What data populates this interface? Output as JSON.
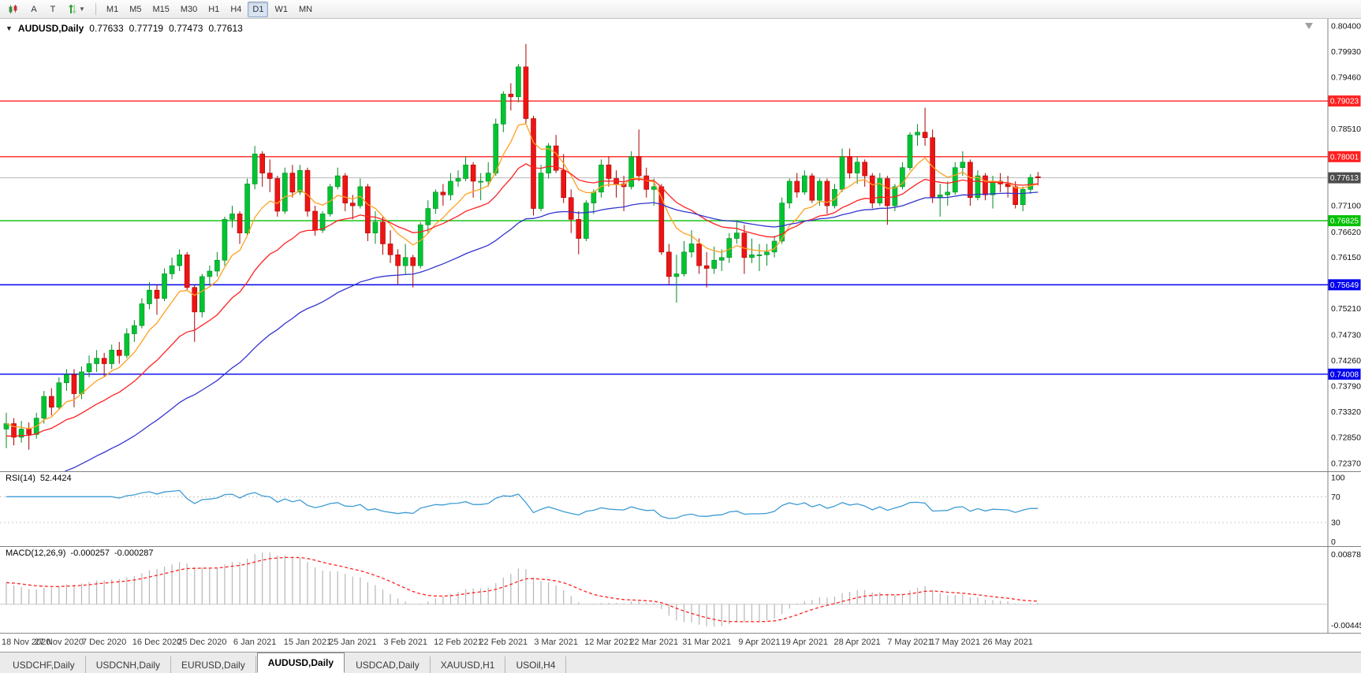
{
  "toolbar": {
    "icon_a": "A",
    "icon_t": "T",
    "timeframes": [
      "M1",
      "M5",
      "M15",
      "M30",
      "H1",
      "H4",
      "D1",
      "W1",
      "MN"
    ],
    "active_timeframe": "D1"
  },
  "header": {
    "symbol": "AUDUSD,Daily",
    "open": "0.77633",
    "high": "0.77719",
    "low": "0.77473",
    "close": "0.77613"
  },
  "price_axis": {
    "labels": [
      "0.80400",
      "0.79930",
      "0.79460",
      "0.78980",
      "0.78510",
      "0.78040",
      "0.77570",
      "0.77100",
      "0.76620",
      "0.76150",
      "0.75680",
      "0.75210",
      "0.74730",
      "0.74260",
      "0.73790",
      "0.73320",
      "0.72850",
      "0.72370"
    ]
  },
  "hlines": [
    {
      "price": 0.79023,
      "label": "0.79023",
      "color": "#ff2020"
    },
    {
      "price": 0.78001,
      "label": "0.78001",
      "color": "#ff2020"
    },
    {
      "price": 0.76825,
      "label": "0.76825",
      "color": "#00c000"
    },
    {
      "price": 0.75649,
      "label": "0.75649",
      "color": "#0000ee"
    },
    {
      "price": 0.74008,
      "label": "0.74008",
      "color": "#0000ee"
    }
  ],
  "current_price": {
    "price": 0.77613,
    "label": "0.77613",
    "line_color": "#b8b8b8",
    "badge_color": "#4d4d4d"
  },
  "colors": {
    "up_fill": "#00c432",
    "up_stroke": "#008a22",
    "down_fill": "#ee1414",
    "down_stroke": "#aa0000",
    "ma_fast": "#ffa020",
    "ma_mid": "#ff2020",
    "ma_slow": "#3434d0",
    "rsi_line": "#3d9bd5",
    "rsi_level": "#c8c8c8",
    "macd_hist": "#b6b6b6",
    "macd_signal": "#ff2020",
    "axis_line": "#808080"
  },
  "rsi": {
    "label": "RSI(14)",
    "value": "52.4424",
    "levels": [
      "100",
      "70",
      "30",
      "0"
    ]
  },
  "macd": {
    "label": "MACD(12,26,9)",
    "value_main": "-0.000257",
    "value_signal": "-0.000287",
    "axis_top": "0.008782",
    "axis_bottom": "-0.004451"
  },
  "dates": [
    {
      "label": "18 Nov 2020",
      "index": 0
    },
    {
      "label": "27 Nov 2020",
      "index": 7
    },
    {
      "label": "7 Dec 2020",
      "index": 13
    },
    {
      "label": "16 Dec 2020",
      "index": 20
    },
    {
      "label": "25 Dec 2020",
      "index": 26
    },
    {
      "label": "6 Jan 2021",
      "index": 33
    },
    {
      "label": "15 Jan 2021",
      "index": 40
    },
    {
      "label": "25 Jan 2021",
      "index": 46
    },
    {
      "label": "3 Feb 2021",
      "index": 53
    },
    {
      "label": "12 Feb 2021",
      "index": 60
    },
    {
      "label": "22 Feb 2021",
      "index": 66
    },
    {
      "label": "3 Mar 2021",
      "index": 73
    },
    {
      "label": "12 Mar 2021",
      "index": 80
    },
    {
      "label": "22 Mar 2021",
      "index": 86
    },
    {
      "label": "31 Mar 2021",
      "index": 93
    },
    {
      "label": "9 Apr 2021",
      "index": 100
    },
    {
      "label": "19 Apr 2021",
      "index": 106
    },
    {
      "label": "28 Apr 2021",
      "index": 113
    },
    {
      "label": "7 May 2021",
      "index": 120
    },
    {
      "label": "17 May 2021",
      "index": 126
    },
    {
      "label": "26 May 2021",
      "index": 133
    }
  ],
  "tabs": [
    {
      "label": "USDCHF,Daily",
      "active": false
    },
    {
      "label": "USDCNH,Daily",
      "active": false
    },
    {
      "label": "EURUSD,Daily",
      "active": false
    },
    {
      "label": "AUDUSD,Daily",
      "active": true
    },
    {
      "label": "USDCAD,Daily",
      "active": false
    },
    {
      "label": "XAUUSD,H1",
      "active": false
    },
    {
      "label": "USOil,H4",
      "active": false
    }
  ],
  "chart_data": {
    "type": "candlestick",
    "symbol": "AUDUSD",
    "timeframe": "Daily",
    "ylim": [
      0.7237,
      0.804
    ],
    "candles": [
      [
        0.73,
        0.733,
        0.7265,
        0.731
      ],
      [
        0.731,
        0.732,
        0.727,
        0.7285
      ],
      [
        0.7285,
        0.7315,
        0.7275,
        0.73
      ],
      [
        0.73,
        0.7312,
        0.7262,
        0.729
      ],
      [
        0.729,
        0.733,
        0.7282,
        0.732
      ],
      [
        0.732,
        0.737,
        0.731,
        0.736
      ],
      [
        0.736,
        0.7375,
        0.7325,
        0.734
      ],
      [
        0.734,
        0.7395,
        0.7335,
        0.7385
      ],
      [
        0.7385,
        0.741,
        0.737,
        0.74
      ],
      [
        0.74,
        0.741,
        0.734,
        0.7365
      ],
      [
        0.7365,
        0.7415,
        0.7355,
        0.7405
      ],
      [
        0.7405,
        0.7435,
        0.7395,
        0.742
      ],
      [
        0.742,
        0.7445,
        0.7405,
        0.743
      ],
      [
        0.743,
        0.744,
        0.7395,
        0.742
      ],
      [
        0.742,
        0.7455,
        0.741,
        0.7445
      ],
      [
        0.7445,
        0.746,
        0.742,
        0.7435
      ],
      [
        0.7435,
        0.7485,
        0.743,
        0.7475
      ],
      [
        0.7475,
        0.75,
        0.746,
        0.749
      ],
      [
        0.749,
        0.754,
        0.7485,
        0.753
      ],
      [
        0.753,
        0.757,
        0.752,
        0.7555
      ],
      [
        0.7555,
        0.7565,
        0.751,
        0.754
      ],
      [
        0.754,
        0.7595,
        0.7535,
        0.7585
      ],
      [
        0.7585,
        0.7615,
        0.7575,
        0.76
      ],
      [
        0.76,
        0.763,
        0.759,
        0.762
      ],
      [
        0.762,
        0.7625,
        0.7555,
        0.756
      ],
      [
        0.756,
        0.7565,
        0.746,
        0.7515
      ],
      [
        0.7515,
        0.7585,
        0.7505,
        0.758
      ],
      [
        0.758,
        0.76,
        0.7565,
        0.759
      ],
      [
        0.759,
        0.7625,
        0.758,
        0.761
      ],
      [
        0.761,
        0.769,
        0.76,
        0.7685
      ],
      [
        0.7685,
        0.771,
        0.767,
        0.7695
      ],
      [
        0.7695,
        0.77,
        0.764,
        0.766
      ],
      [
        0.766,
        0.776,
        0.7655,
        0.775
      ],
      [
        0.775,
        0.782,
        0.774,
        0.7805
      ],
      [
        0.7805,
        0.781,
        0.7745,
        0.777
      ],
      [
        0.777,
        0.7795,
        0.7735,
        0.776
      ],
      [
        0.776,
        0.7765,
        0.769,
        0.77
      ],
      [
        0.77,
        0.778,
        0.7695,
        0.777
      ],
      [
        0.777,
        0.7785,
        0.7725,
        0.7735
      ],
      [
        0.7735,
        0.7785,
        0.773,
        0.7775
      ],
      [
        0.7775,
        0.778,
        0.769,
        0.77
      ],
      [
        0.77,
        0.771,
        0.7655,
        0.7665
      ],
      [
        0.7665,
        0.77,
        0.766,
        0.7695
      ],
      [
        0.7695,
        0.775,
        0.769,
        0.7745
      ],
      [
        0.7745,
        0.778,
        0.774,
        0.7765
      ],
      [
        0.7765,
        0.777,
        0.77,
        0.7715
      ],
      [
        0.7715,
        0.773,
        0.7685,
        0.771
      ],
      [
        0.771,
        0.776,
        0.7705,
        0.7745
      ],
      [
        0.7745,
        0.775,
        0.7645,
        0.766
      ],
      [
        0.766,
        0.77,
        0.764,
        0.768
      ],
      [
        0.768,
        0.769,
        0.762,
        0.764
      ],
      [
        0.764,
        0.7665,
        0.7605,
        0.762
      ],
      [
        0.762,
        0.763,
        0.7565,
        0.76
      ],
      [
        0.76,
        0.764,
        0.7585,
        0.7615
      ],
      [
        0.7615,
        0.762,
        0.756,
        0.76
      ],
      [
        0.76,
        0.768,
        0.7595,
        0.7675
      ],
      [
        0.7675,
        0.772,
        0.766,
        0.7705
      ],
      [
        0.7705,
        0.774,
        0.7695,
        0.7735
      ],
      [
        0.7735,
        0.775,
        0.771,
        0.773
      ],
      [
        0.773,
        0.777,
        0.772,
        0.7755
      ],
      [
        0.7755,
        0.7775,
        0.7745,
        0.776
      ],
      [
        0.776,
        0.78,
        0.7755,
        0.7785
      ],
      [
        0.7785,
        0.779,
        0.7725,
        0.7755
      ],
      [
        0.7755,
        0.777,
        0.772,
        0.7755
      ],
      [
        0.7755,
        0.779,
        0.7745,
        0.777
      ],
      [
        0.777,
        0.787,
        0.7765,
        0.786
      ],
      [
        0.786,
        0.792,
        0.7845,
        0.7915
      ],
      [
        0.7915,
        0.7935,
        0.7885,
        0.791
      ],
      [
        0.791,
        0.797,
        0.79,
        0.7965
      ],
      [
        0.7965,
        0.8007,
        0.786,
        0.787
      ],
      [
        0.787,
        0.7875,
        0.7692,
        0.7705
      ],
      [
        0.7705,
        0.7785,
        0.77,
        0.777
      ],
      [
        0.777,
        0.7825,
        0.776,
        0.782
      ],
      [
        0.782,
        0.784,
        0.777,
        0.7775
      ],
      [
        0.7775,
        0.7805,
        0.7715,
        0.7725
      ],
      [
        0.7725,
        0.774,
        0.766,
        0.7685
      ],
      [
        0.7685,
        0.77,
        0.7621,
        0.765
      ],
      [
        0.765,
        0.772,
        0.7645,
        0.7715
      ],
      [
        0.7715,
        0.774,
        0.7695,
        0.7735
      ],
      [
        0.7735,
        0.7795,
        0.7725,
        0.7785
      ],
      [
        0.7785,
        0.78,
        0.7745,
        0.776
      ],
      [
        0.776,
        0.7775,
        0.7725,
        0.775
      ],
      [
        0.775,
        0.7765,
        0.77,
        0.7745
      ],
      [
        0.7745,
        0.781,
        0.774,
        0.78
      ],
      [
        0.78,
        0.785,
        0.7755,
        0.7765
      ],
      [
        0.7765,
        0.778,
        0.7725,
        0.774
      ],
      [
        0.774,
        0.776,
        0.771,
        0.7745
      ],
      [
        0.7745,
        0.775,
        0.762,
        0.7625
      ],
      [
        0.7625,
        0.764,
        0.7565,
        0.758
      ],
      [
        0.758,
        0.762,
        0.7532,
        0.7585
      ],
      [
        0.7585,
        0.7645,
        0.758,
        0.7625
      ],
      [
        0.7625,
        0.7665,
        0.7615,
        0.764
      ],
      [
        0.764,
        0.765,
        0.7585,
        0.76
      ],
      [
        0.76,
        0.7625,
        0.756,
        0.7595
      ],
      [
        0.7595,
        0.7635,
        0.7585,
        0.761
      ],
      [
        0.761,
        0.763,
        0.759,
        0.7615
      ],
      [
        0.7615,
        0.766,
        0.7605,
        0.765
      ],
      [
        0.765,
        0.768,
        0.764,
        0.766
      ],
      [
        0.766,
        0.7675,
        0.7585,
        0.7615
      ],
      [
        0.7615,
        0.765,
        0.7605,
        0.762
      ],
      [
        0.762,
        0.764,
        0.759,
        0.762
      ],
      [
        0.762,
        0.764,
        0.76,
        0.7625
      ],
      [
        0.7625,
        0.7655,
        0.7615,
        0.7645
      ],
      [
        0.7645,
        0.7725,
        0.764,
        0.7715
      ],
      [
        0.7715,
        0.776,
        0.7705,
        0.7755
      ],
      [
        0.7755,
        0.777,
        0.7725,
        0.7735
      ],
      [
        0.7735,
        0.7775,
        0.773,
        0.7765
      ],
      [
        0.7765,
        0.777,
        0.7715,
        0.772
      ],
      [
        0.772,
        0.776,
        0.771,
        0.7755
      ],
      [
        0.7755,
        0.776,
        0.7695,
        0.771
      ],
      [
        0.771,
        0.775,
        0.7705,
        0.774
      ],
      [
        0.774,
        0.7815,
        0.7735,
        0.78
      ],
      [
        0.78,
        0.7815,
        0.776,
        0.777
      ],
      [
        0.777,
        0.78,
        0.775,
        0.779
      ],
      [
        0.779,
        0.7795,
        0.7745,
        0.7765
      ],
      [
        0.7765,
        0.777,
        0.7705,
        0.7715
      ],
      [
        0.7715,
        0.777,
        0.771,
        0.776
      ],
      [
        0.776,
        0.7765,
        0.7675,
        0.771
      ],
      [
        0.771,
        0.775,
        0.77,
        0.7745
      ],
      [
        0.7745,
        0.779,
        0.774,
        0.778
      ],
      [
        0.778,
        0.7845,
        0.7775,
        0.784
      ],
      [
        0.784,
        0.786,
        0.782,
        0.7845
      ],
      [
        0.7845,
        0.789,
        0.782,
        0.7835
      ],
      [
        0.7835,
        0.785,
        0.7715,
        0.7725
      ],
      [
        0.7725,
        0.775,
        0.769,
        0.773
      ],
      [
        0.773,
        0.7755,
        0.771,
        0.7735
      ],
      [
        0.7735,
        0.779,
        0.773,
        0.778
      ],
      [
        0.778,
        0.781,
        0.7765,
        0.779
      ],
      [
        0.779,
        0.7795,
        0.771,
        0.7725
      ],
      [
        0.7725,
        0.7775,
        0.772,
        0.7765
      ],
      [
        0.7765,
        0.777,
        0.772,
        0.773
      ],
      [
        0.773,
        0.7765,
        0.7705,
        0.7755
      ],
      [
        0.7755,
        0.777,
        0.7735,
        0.775
      ],
      [
        0.775,
        0.7765,
        0.7725,
        0.7745
      ],
      [
        0.7745,
        0.7755,
        0.7705,
        0.7712
      ],
      [
        0.7712,
        0.7745,
        0.77,
        0.774
      ],
      [
        0.774,
        0.7768,
        0.7732,
        0.7762
      ],
      [
        0.77633,
        0.77719,
        0.77473,
        0.77613
      ]
    ]
  }
}
